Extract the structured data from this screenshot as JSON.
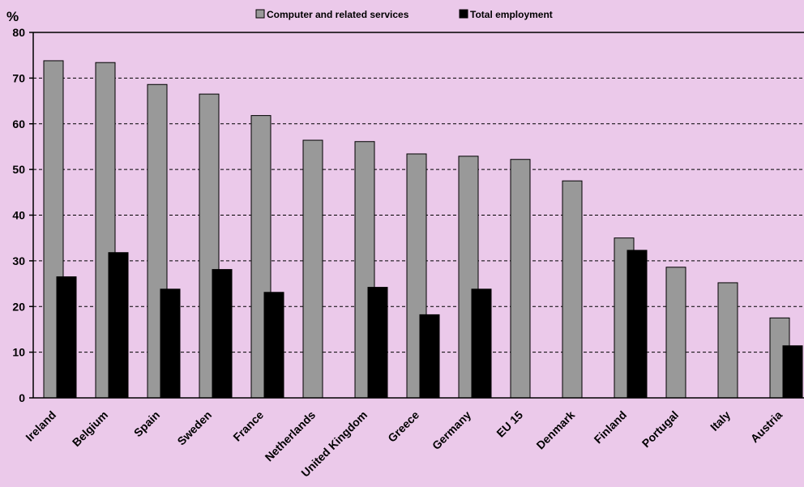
{
  "chart_data": {
    "type": "bar",
    "unit_label": "%",
    "categories": [
      "Ireland",
      "Belgium",
      "Spain",
      "Sweden",
      "France",
      "Netherlands",
      "United Kingdom",
      "Greece",
      "Germany",
      "EU 15",
      "Denmark",
      "Finland",
      "Portugal",
      "Italy",
      "Austria"
    ],
    "series": [
      {
        "name": "Computer and related services",
        "color": "#999999",
        "values": [
          73.8,
          73.4,
          68.6,
          66.5,
          61.8,
          56.4,
          56.1,
          53.4,
          52.9,
          52.2,
          47.5,
          35.0,
          28.6,
          25.2,
          17.5
        ]
      },
      {
        "name": "Total employment",
        "color": "#000000",
        "values": [
          26.5,
          31.8,
          23.8,
          28.1,
          23.1,
          null,
          24.2,
          18.2,
          23.8,
          null,
          null,
          32.3,
          null,
          null,
          11.4
        ]
      }
    ],
    "ylim": [
      0,
      80
    ],
    "yticks": [
      0,
      10,
      20,
      30,
      40,
      50,
      60,
      70,
      80
    ],
    "grid": true,
    "legend_position": "top-center"
  }
}
